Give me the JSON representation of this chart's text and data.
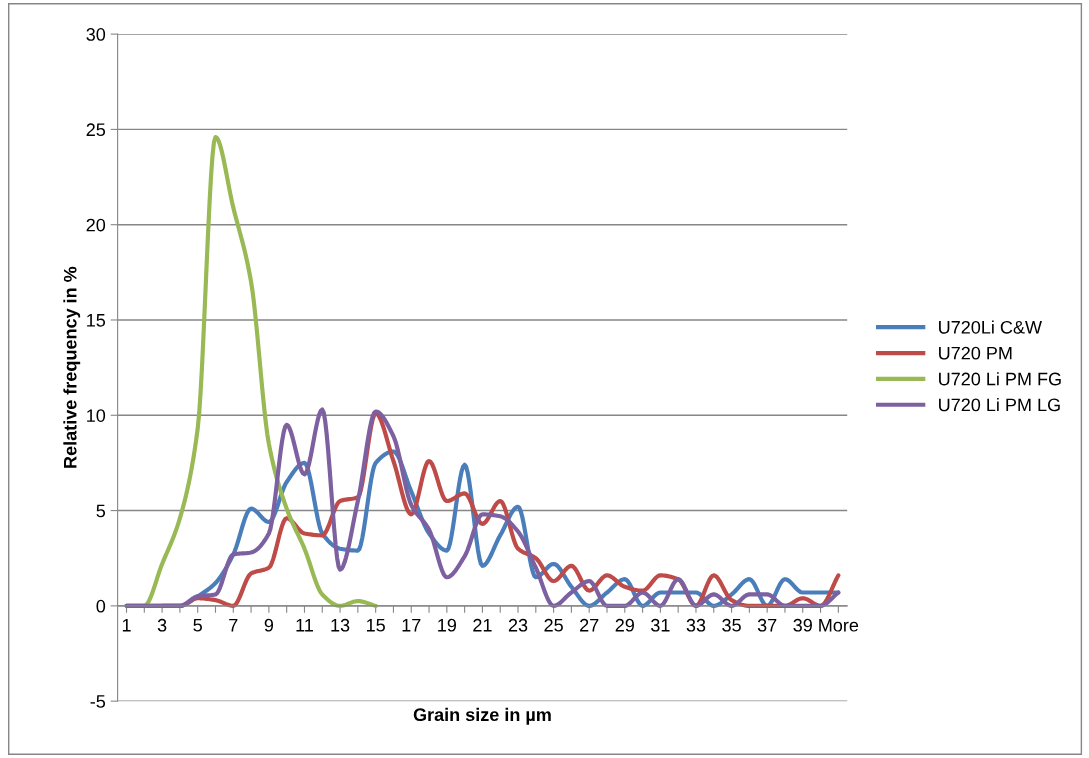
{
  "chart_data": {
    "type": "line",
    "xlabel": "Grain size in µm",
    "ylabel": "Relative frequency in %",
    "categories": [
      "1",
      null,
      "3",
      null,
      "5",
      null,
      "7",
      null,
      "9",
      null,
      "11",
      null,
      "13",
      null,
      "15",
      null,
      "17",
      null,
      "19",
      null,
      "21",
      null,
      "23",
      null,
      "25",
      null,
      "27",
      null,
      "29",
      null,
      "31",
      null,
      "33",
      null,
      "35",
      null,
      "37",
      null,
      "39",
      null,
      "More"
    ],
    "ylim": [
      -5,
      30
    ],
    "yticks": [
      -5,
      0,
      5,
      10,
      15,
      20,
      25,
      30
    ],
    "grid": "y",
    "legend": "right",
    "marker": "none",
    "line_style": "solid",
    "series": [
      {
        "name": "U720Li C&W",
        "color": "#4a7ebb",
        "values": [
          0,
          0,
          0,
          0,
          0.5,
          1.2,
          2.7,
          5.1,
          4.4,
          6.5,
          7.5,
          3.8,
          3.0,
          2.9,
          7.5,
          8.1,
          6.0,
          3.8,
          2.9,
          7.4,
          2.1,
          3.7,
          5.2,
          1.5,
          2.2,
          1.0,
          0,
          0.7,
          1.4,
          0,
          0.7,
          0.7,
          0.7,
          0,
          0.6,
          1.4,
          0,
          1.4,
          0.7,
          0.7,
          0.7
        ]
      },
      {
        "name": "U720 PM",
        "color": "#be4b48",
        "values": [
          null,
          null,
          0,
          0,
          0.4,
          0.3,
          0,
          1.7,
          2.0,
          4.6,
          3.8,
          3.7,
          5.5,
          5.7,
          10.1,
          7.6,
          4.8,
          7.6,
          5.5,
          5.9,
          4.3,
          5.5,
          3.0,
          2.5,
          1.3,
          2.1,
          0.8,
          1.6,
          1.0,
          0.8,
          1.6,
          1.4,
          0,
          1.6,
          0.3,
          0,
          0,
          0,
          0.4,
          0,
          1.6
        ]
      },
      {
        "name": "U720 Li PM FG",
        "color": "#98b954",
        "values": [
          0,
          0,
          2.2,
          4.6,
          9.3,
          24.6,
          20.9,
          17.0,
          8.5,
          5.1,
          3.0,
          0.6,
          0,
          0.25,
          0,
          null,
          null,
          null,
          null,
          null,
          null,
          null,
          null,
          null,
          null,
          null,
          null,
          null,
          null,
          null,
          null,
          null,
          null,
          null,
          null,
          null,
          null,
          null,
          null,
          null,
          null
        ]
      },
      {
        "name": "U720 Li PM LG",
        "color": "#7d60a0",
        "values": [
          0,
          0,
          0,
          0,
          0.5,
          0.6,
          2.7,
          2.8,
          3.8,
          9.5,
          6.9,
          10.3,
          1.9,
          5.5,
          10.2,
          8.9,
          5.3,
          4.0,
          1.5,
          2.6,
          4.8,
          4.7,
          3.9,
          2.0,
          0,
          0.7,
          1.3,
          0,
          0,
          0.7,
          0,
          1.4,
          0,
          0.6,
          0,
          0.6,
          0.6,
          0,
          0,
          0,
          0.7
        ]
      }
    ]
  }
}
